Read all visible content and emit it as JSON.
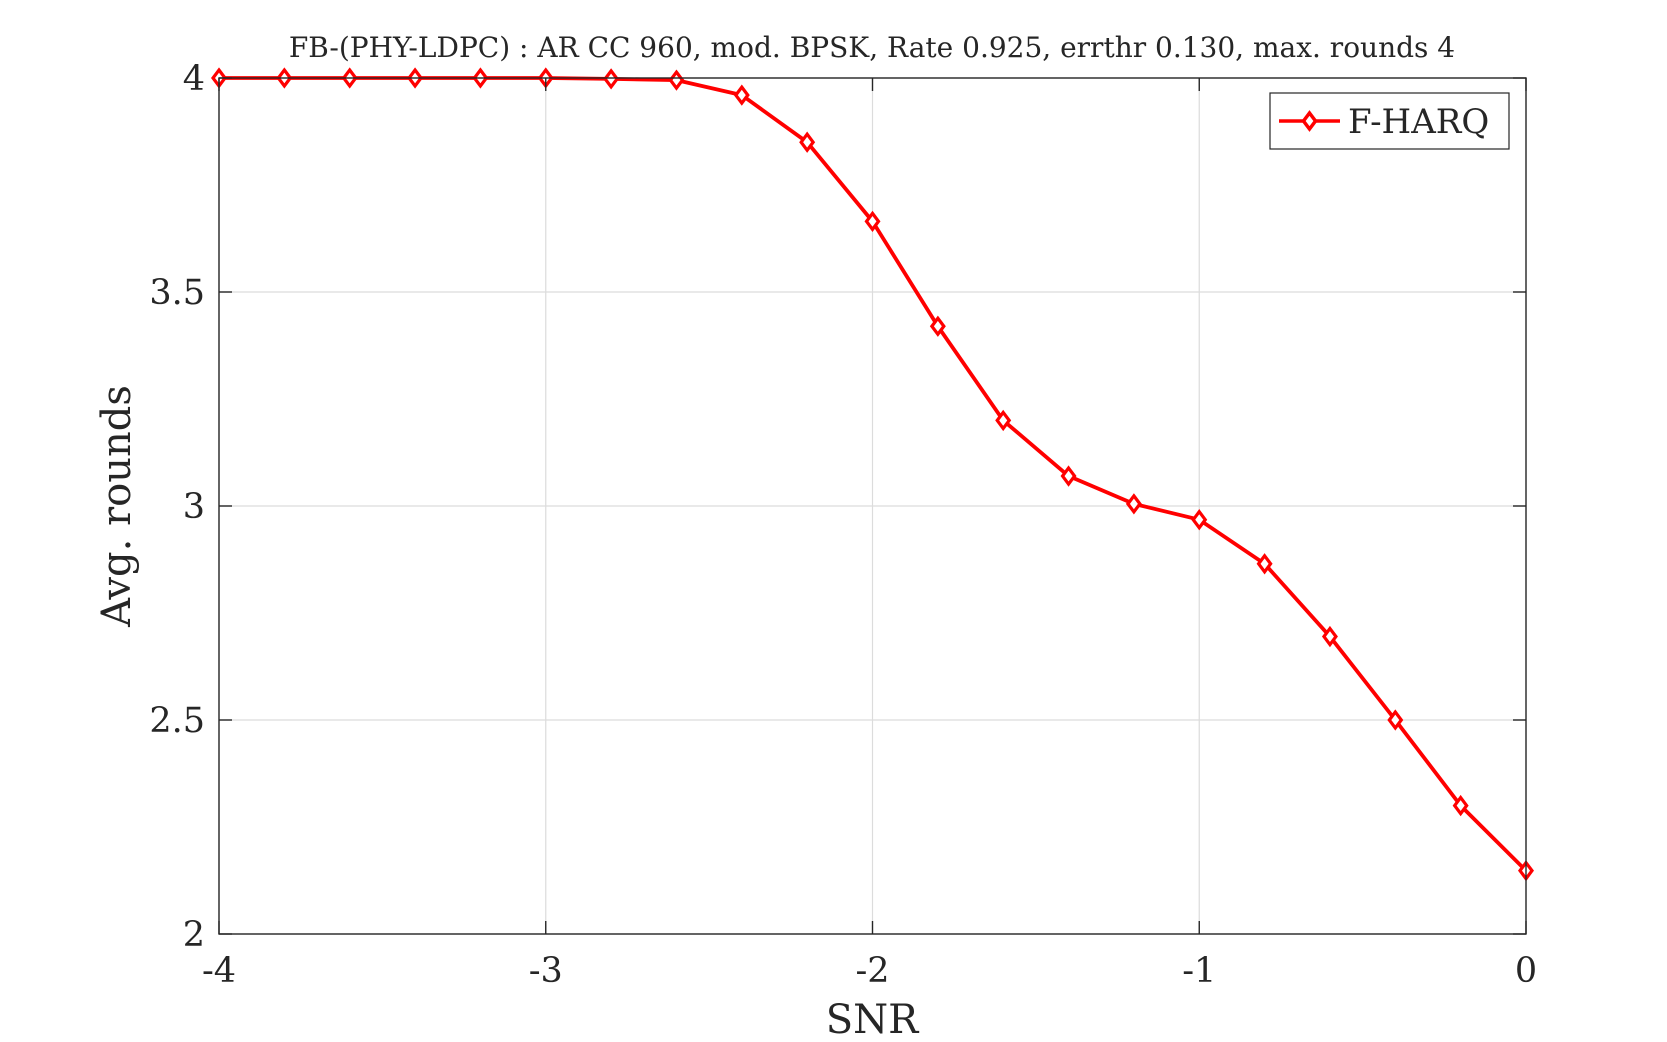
{
  "chart_data": {
    "type": "line",
    "title": "FB-(PHY-LDPC) : AR CC 960, mod. BPSK, Rate 0.925, errthr 0.130, max. rounds 4",
    "xlabel": "SNR",
    "ylabel": "Avg. rounds",
    "xlim": [
      -4,
      0
    ],
    "ylim": [
      2,
      4
    ],
    "xticks": [
      -4,
      -3,
      -2,
      -1,
      0
    ],
    "xtick_labels": [
      "-4",
      "-3",
      "-2",
      "-1",
      "0"
    ],
    "yticks": [
      2,
      2.5,
      3,
      3.5,
      4
    ],
    "ytick_labels": [
      "2",
      "2.5",
      "3",
      "3.5",
      "4"
    ],
    "grid": true,
    "legend_position": "top-right",
    "series": [
      {
        "name": "F-HARQ",
        "color": "#ff0000",
        "marker": "diamond",
        "x": [
          -4,
          -3.8,
          -3.6,
          -3.4,
          -3.2,
          -3,
          -2.8,
          -2.6,
          -2.4,
          -2.2,
          -2,
          -1.8,
          -1.6,
          -1.4,
          -1.2,
          -1,
          -0.8,
          -0.6,
          -0.4,
          -0.2,
          0
        ],
        "values": [
          4.0,
          4.0,
          4.0,
          4.0,
          4.0,
          4.0,
          3.998,
          3.995,
          3.96,
          3.85,
          3.665,
          3.42,
          3.2,
          3.07,
          3.005,
          2.968,
          2.865,
          2.695,
          2.5,
          2.3,
          2.148
        ]
      }
    ]
  }
}
